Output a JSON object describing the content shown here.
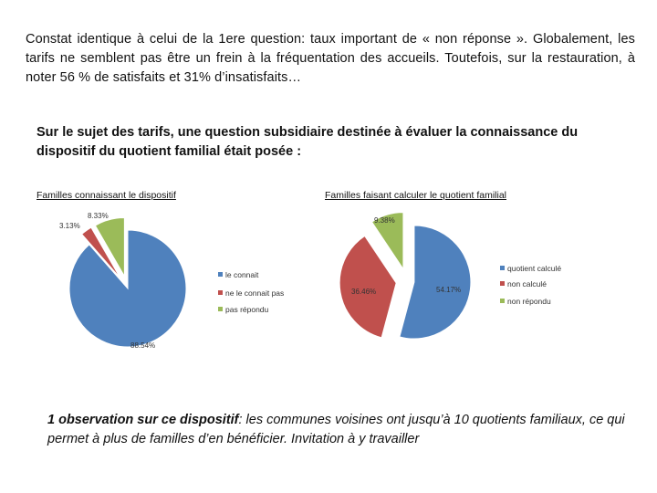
{
  "intro": {
    "text": "Constat identique à celui de la 1ere question: taux important de « non réponse ». Globalement, les tarifs ne semblent pas être un frein à la fréquentation des accueils. Toutefois, sur la restauration, à noter 56 % de satisfaits et 31% d’insatisfaits…"
  },
  "subsidiary": {
    "text": "Sur le sujet des tarifs, une question subsidiaire destinée à évaluer la connaissance du dispositif du quotient familial était posée :"
  },
  "colors": {
    "blue": "#4f81bd",
    "red": "#c0504d",
    "green": "#9bbb59"
  },
  "chart_data": [
    {
      "type": "pie",
      "title": "Familles connaissant le dispositif",
      "categories": [
        "le connait",
        "ne le connait pas",
        "pas répondu"
      ],
      "values": [
        88.54,
        3.13,
        8.33
      ],
      "data_labels": [
        "88.54%",
        "3.13%",
        "8.33%"
      ],
      "colors": [
        "#4f81bd",
        "#c0504d",
        "#9bbb59"
      ],
      "legend_position": "right"
    },
    {
      "type": "pie",
      "title": "Familles faisant calculer le quotient familial",
      "categories": [
        "quotient calculé",
        "non calculé",
        "non répondu"
      ],
      "values": [
        54.17,
        36.46,
        9.38
      ],
      "data_labels": [
        "54.17%",
        "36.46%",
        "9.38%"
      ],
      "colors": [
        "#4f81bd",
        "#c0504d",
        "#9bbb59"
      ],
      "legend_position": "right"
    }
  ],
  "observation": {
    "lead": "1 observation sur ce dispositif",
    "rest": ": les communes voisines ont jusqu’à 10 quotients familiaux, ce qui permet à plus de familles d’en bénéficier. Invitation à y travailler"
  }
}
